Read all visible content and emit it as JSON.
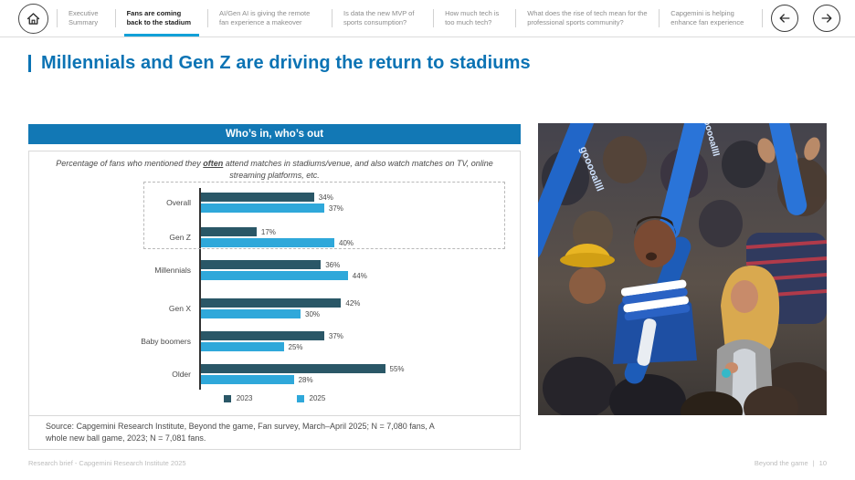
{
  "nav": {
    "tabs": [
      {
        "label": "Executive Summary",
        "active": false
      },
      {
        "label": "Fans are coming back to the stadium",
        "active": true
      },
      {
        "label": "AI/Gen AI is giving the remote fan experience a makeover",
        "active": false
      },
      {
        "label": "Is data the new MVP of sports consumption?",
        "active": false
      },
      {
        "label": "How much tech is too much tech?",
        "active": false
      },
      {
        "label": "What does the rise of tech mean for the professional sports community?",
        "active": false
      },
      {
        "label": "Capgemini is helping enhance fan experience",
        "active": false
      }
    ]
  },
  "page_title": "Millennials and Gen Z are driving the return to stadiums",
  "chart_card": {
    "header": "Who’s in, who’s out",
    "subtitle_prefix": "Percentage of fans who mentioned they ",
    "subtitle_emphasis": "often",
    "subtitle_suffix": " attend matches in stadiums/venue, and also watch matches on TV, online streaming platforms, etc.",
    "source_line1": "Source: Capgemini Research Institute, Beyond the game, Fan survey, March–April 2025; N = 7,080 fans, A",
    "source_line2": "whole new ball game, 2023; N = 7,081 fans."
  },
  "chart_data": {
    "type": "bar",
    "orientation": "horizontal",
    "title": "Who’s in, who’s out",
    "categories": [
      "Overall",
      "Gen Z",
      "Millennials",
      "Gen X",
      "Baby boomers",
      "Older"
    ],
    "series": [
      {
        "name": "2023",
        "color": "#2a5767",
        "values": [
          34,
          17,
          36,
          42,
          37,
          55
        ]
      },
      {
        "name": "2025",
        "color": "#2fa8da",
        "values": [
          37,
          40,
          44,
          30,
          25,
          28
        ]
      }
    ],
    "value_suffix": "%",
    "xlim": [
      0,
      60
    ],
    "grid": false,
    "legend_position": "bottom",
    "highlight_categories": [
      "Gen Z",
      "Millennials"
    ]
  },
  "footer": {
    "left": "Research brief - Capgemini Research Institute 2025",
    "right_label": "Beyond the game",
    "right_separator": "|",
    "page_number": "10"
  },
  "colors": {
    "accent_blue": "#0b73b4",
    "header_bar_blue": "#1278b5",
    "active_tab_underline": "#12a0d7",
    "bar_2023": "#2a5767",
    "bar_2025": "#2fa8da",
    "axis": "#333333"
  }
}
